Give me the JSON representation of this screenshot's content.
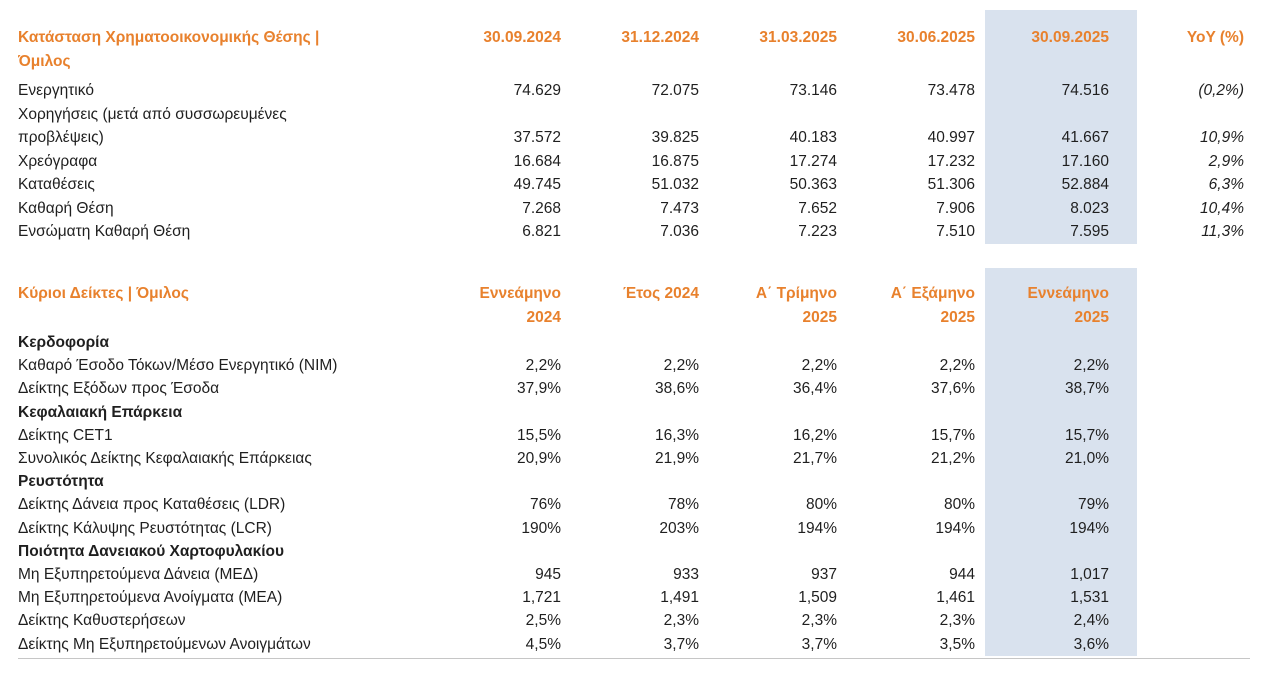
{
  "colors": {
    "accent_orange": "#E8812D",
    "highlight_column_blue": "#D9E2EE",
    "divider_gray": "#C6C6C6",
    "text": "#1F1F1F"
  },
  "table1": {
    "title": "Κατάσταση Χρηματοοικονομικής Θέσης |\nΌμιλος",
    "columns": [
      "30.09.2024",
      "31.12.2024",
      "31.03.2025",
      "30.06.2025",
      "30.09.2025"
    ],
    "highlighted_column": "30.09.2025",
    "yoy_label": "YoY (%)",
    "rows": [
      {
        "label": "Ενεργητικό",
        "values": [
          "74.629",
          "72.075",
          "73.146",
          "73.478",
          "74.516"
        ],
        "yoy": "(0,2%)"
      },
      {
        "label": "Χορηγήσεις (μετά από συσσωρευμένες\nπροβλέψεις)",
        "values": [
          "37.572",
          "39.825",
          "40.183",
          "40.997",
          "41.667"
        ],
        "yoy": "10,9%"
      },
      {
        "label": "Χρεόγραφα",
        "values": [
          "16.684",
          "16.875",
          "17.274",
          "17.232",
          "17.160"
        ],
        "yoy": "2,9%"
      },
      {
        "label": "Καταθέσεις",
        "values": [
          "49.745",
          "51.032",
          "50.363",
          "51.306",
          "52.884"
        ],
        "yoy": "6,3%"
      },
      {
        "label": "Καθαρή Θέση",
        "values": [
          "7.268",
          "7.473",
          "7.652",
          "7.906",
          "8.023"
        ],
        "yoy": "10,4%"
      },
      {
        "label": "Ενσώματη Καθαρή Θέση",
        "values": [
          "6.821",
          "7.036",
          "7.223",
          "7.510",
          "7.595"
        ],
        "yoy": "11,3%"
      }
    ]
  },
  "table2": {
    "title": "Κύριοι Δείκτες | Όμιλος",
    "columns": [
      "Εννεάμηνο\n2024",
      "Έτος 2024",
      "Α΄ Τρίμηνο\n2025",
      "Α΄ Εξάμηνο\n2025",
      "Εννεάμηνο\n2025"
    ],
    "highlighted_column": "Εννεάμηνο 2025",
    "rows": [
      {
        "type": "section",
        "label": "Κερδοφορία"
      },
      {
        "label": "Καθαρό Έσοδο Τόκων/Μέσο Ενεργητικό (ΝΙΜ)",
        "values": [
          "2,2%",
          "2,2%",
          "2,2%",
          "2,2%",
          "2,2%"
        ]
      },
      {
        "label": "Δείκτης Εξόδων προς Έσοδα",
        "values": [
          "37,9%",
          "38,6%",
          "36,4%",
          "37,6%",
          "38,7%"
        ]
      },
      {
        "type": "section",
        "label": "Κεφαλαιακή Επάρκεια"
      },
      {
        "label": "Δείκτης CET1",
        "values": [
          "15,5%",
          "16,3%",
          "16,2%",
          "15,7%",
          "15,7%"
        ]
      },
      {
        "label": "Συνολικός Δείκτης Κεφαλαιακής Επάρκειας",
        "values": [
          "20,9%",
          "21,9%",
          "21,7%",
          "21,2%",
          "21,0%"
        ]
      },
      {
        "type": "section",
        "label": "Ρευστότητα"
      },
      {
        "label": "Δείκτης Δάνεια προς Καταθέσεις (LDR)",
        "values": [
          "76%",
          "78%",
          "80%",
          "80%",
          "79%"
        ]
      },
      {
        "label": "Δείκτης Κάλυψης Ρευστότητας (LCR)",
        "values": [
          "190%",
          "203%",
          "194%",
          "194%",
          "194%"
        ]
      },
      {
        "type": "section",
        "label": "Ποιότητα Δανειακού Χαρτοφυλακίου"
      },
      {
        "label": "Μη Εξυπηρετούμενα Δάνεια (ΜΕΔ)",
        "values": [
          "945",
          "933",
          "937",
          "944",
          "1,017"
        ]
      },
      {
        "label": "Μη Εξυπηρετούμενα Ανοίγματα (ΜΕΑ)",
        "values": [
          "1,721",
          "1,491",
          "1,509",
          "1,461",
          "1,531"
        ]
      },
      {
        "label": "Δείκτης Καθυστερήσεων",
        "values": [
          "2,5%",
          "2,3%",
          "2,3%",
          "2,3%",
          "2,4%"
        ]
      },
      {
        "label": "Δείκτης Μη Εξυπηρετούμενων Ανοιγμάτων",
        "values": [
          "4,5%",
          "3,7%",
          "3,7%",
          "3,5%",
          "3,6%"
        ]
      }
    ]
  }
}
